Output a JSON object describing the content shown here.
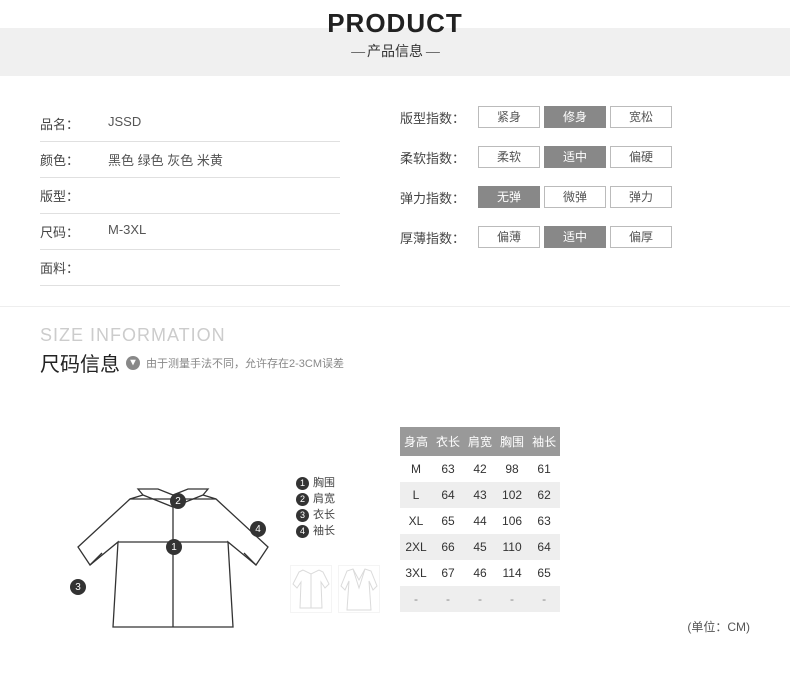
{
  "header": {
    "title_en": "PRODUCT",
    "title_cn": "产品信息"
  },
  "fields": [
    {
      "label": "品名：",
      "value": "JSSD"
    },
    {
      "label": "颜色：",
      "value": "黑色 绿色 灰色 米黄"
    },
    {
      "label": "版型：",
      "value": ""
    },
    {
      "label": "尺码：",
      "value": "M-3XL"
    },
    {
      "label": "面料：",
      "value": ""
    }
  ],
  "scales": [
    {
      "label": "版型指数：",
      "opts": [
        "紧身",
        "修身",
        "宽松"
      ],
      "sel": 1
    },
    {
      "label": "柔软指数：",
      "opts": [
        "柔软",
        "适中",
        "偏硬"
      ],
      "sel": 1
    },
    {
      "label": "弹力指数：",
      "opts": [
        "无弹",
        "微弹",
        "弹力"
      ],
      "sel": 0
    },
    {
      "label": "厚薄指数：",
      "opts": [
        "偏薄",
        "适中",
        "偏厚"
      ],
      "sel": 1
    }
  ],
  "size_section": {
    "title_en": "SIZE INFORMATION",
    "title_cn": "尺码信息",
    "note": "由于测量手法不同，允许存在2-3CM误差",
    "unit": "(单位：CM)"
  },
  "size_table": {
    "columns": [
      "身高",
      "衣长",
      "肩宽",
      "胸围",
      "袖长"
    ],
    "rows": [
      [
        "M",
        "63",
        "42",
        "98",
        "61"
      ],
      [
        "L",
        "64",
        "43",
        "102",
        "62"
      ],
      [
        "XL",
        "65",
        "44",
        "106",
        "63"
      ],
      [
        "2XL",
        "66",
        "45",
        "110",
        "64"
      ],
      [
        "3XL",
        "67",
        "46",
        "114",
        "65"
      ],
      [
        "-",
        "-",
        "-",
        "-",
        "-"
      ]
    ],
    "header_bg": "#999999",
    "header_color": "#ffffff",
    "row_alt_bg": "#eeeeee"
  },
  "legend": [
    {
      "n": "1",
      "t": "胸围"
    },
    {
      "n": "2",
      "t": "肩宽"
    },
    {
      "n": "3",
      "t": "衣长"
    },
    {
      "n": "4",
      "t": "袖长"
    }
  ],
  "colors": {
    "scale_selected_bg": "#888888",
    "scale_border": "#bbbbbb",
    "text_muted": "#888888"
  }
}
